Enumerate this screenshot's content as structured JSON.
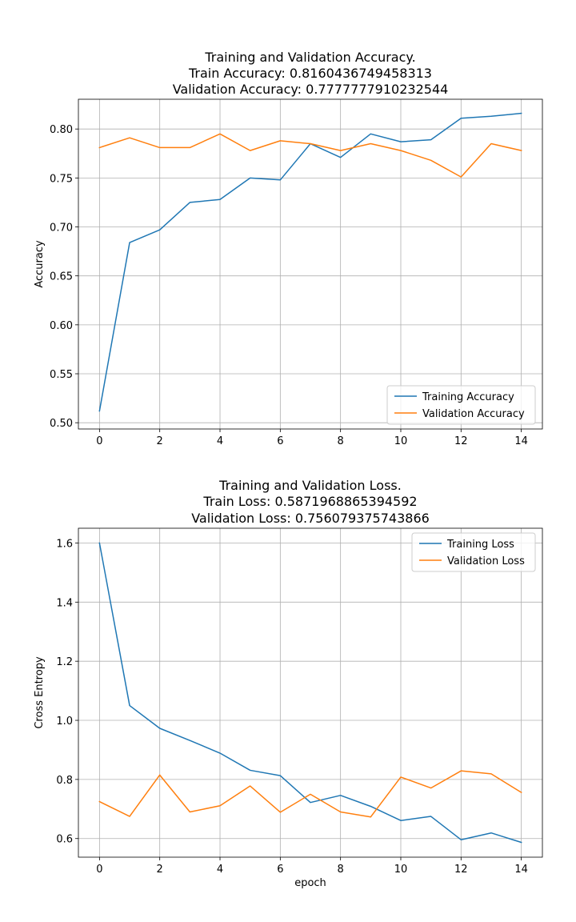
{
  "chart_data": [
    {
      "type": "line",
      "title_lines": [
        "Training and Validation Accuracy.",
        "Train Accuracy: 0.8160436749458313",
        "Validation Accuracy: 0.7777777910232544"
      ],
      "xlabel": "",
      "ylabel": "Accuracy",
      "x": [
        0,
        1,
        2,
        3,
        4,
        5,
        6,
        7,
        8,
        9,
        10,
        11,
        12,
        13,
        14
      ],
      "xlim": [
        -0.7,
        14.7
      ],
      "ylim": [
        0.4936,
        0.8304
      ],
      "xticks": [
        0,
        2,
        4,
        6,
        8,
        10,
        12,
        14
      ],
      "xtick_labels": [
        "0",
        "2",
        "4",
        "6",
        "8",
        "10",
        "12",
        "14"
      ],
      "yticks": [
        0.5,
        0.55,
        0.6,
        0.65,
        0.7,
        0.75,
        0.8
      ],
      "ytick_labels": [
        "0.50",
        "0.55",
        "0.60",
        "0.65",
        "0.70",
        "0.75",
        "0.80"
      ],
      "grid": true,
      "legend_position": "lower-right",
      "series": [
        {
          "name": "Training Accuracy",
          "color": "#1f77b4",
          "values": [
            0.512,
            0.684,
            0.697,
            0.725,
            0.728,
            0.75,
            0.748,
            0.785,
            0.771,
            0.795,
            0.787,
            0.789,
            0.811,
            0.813,
            0.816
          ]
        },
        {
          "name": "Validation Accuracy",
          "color": "#ff7f0e",
          "values": [
            0.781,
            0.791,
            0.781,
            0.781,
            0.795,
            0.778,
            0.788,
            0.785,
            0.778,
            0.785,
            0.778,
            0.768,
            0.751,
            0.785,
            0.778
          ]
        }
      ]
    },
    {
      "type": "line",
      "title_lines": [
        "Training and Validation Loss.",
        "Train Loss: 0.5871968865394592",
        "Validation Loss: 0.756079375743866"
      ],
      "xlabel": "epoch",
      "ylabel": "Cross Entropy",
      "x": [
        0,
        1,
        2,
        3,
        4,
        5,
        6,
        7,
        8,
        9,
        10,
        11,
        12,
        13,
        14
      ],
      "xlim": [
        -0.7,
        14.7
      ],
      "ylim": [
        0.537,
        1.65
      ],
      "xticks": [
        0,
        2,
        4,
        6,
        8,
        10,
        12,
        14
      ],
      "xtick_labels": [
        "0",
        "2",
        "4",
        "6",
        "8",
        "10",
        "12",
        "14"
      ],
      "yticks": [
        0.6,
        0.8,
        1.0,
        1.2,
        1.4,
        1.6
      ],
      "ytick_labels": [
        "0.6",
        "0.8",
        "1.0",
        "1.2",
        "1.4",
        "1.6"
      ],
      "grid": true,
      "legend_position": "upper-right",
      "series": [
        {
          "name": "Training Loss",
          "color": "#1f77b4",
          "values": [
            1.6,
            1.05,
            0.973,
            0.932,
            0.889,
            0.831,
            0.813,
            0.722,
            0.746,
            0.709,
            0.661,
            0.675,
            0.596,
            0.619,
            0.587
          ]
        },
        {
          "name": "Validation Loss",
          "color": "#ff7f0e",
          "values": [
            0.725,
            0.675,
            0.815,
            0.69,
            0.711,
            0.778,
            0.689,
            0.75,
            0.69,
            0.673,
            0.808,
            0.771,
            0.829,
            0.819,
            0.756
          ]
        }
      ]
    }
  ]
}
